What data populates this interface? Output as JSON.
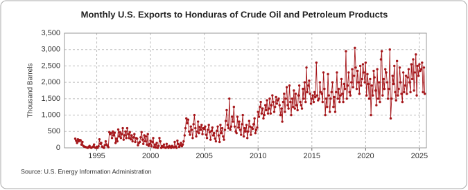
{
  "chart_data": {
    "type": "line",
    "title": "Monthly U.S. Exports to Honduras of Crude Oil and Petroleum Products",
    "y_label": "Thousand Barrels",
    "source": "Source: U.S. Energy Information Administration",
    "grid": true,
    "xlim": [
      1992,
      2025.65
    ],
    "xticks": [
      1995,
      2000,
      2005,
      2010,
      2015,
      2020,
      2025
    ],
    "ylim": [
      0,
      3500
    ],
    "yticks": [
      0,
      500,
      {
        "value": 1000,
        "label": "1,000"
      },
      {
        "value": 1500,
        "label": "1,500"
      },
      {
        "value": 2000,
        "label": "2,000"
      },
      {
        "value": 2500,
        "label": "2,500"
      },
      {
        "value": 3000,
        "label": "3,000"
      },
      {
        "value": 3500,
        "label": "3,500"
      }
    ],
    "x": [
      1993,
      1993.08,
      1993.17,
      1993.25,
      1993.33,
      1993.42,
      1993.5,
      1993.58,
      1993.67,
      1993.75,
      1993.83,
      1993.92,
      1994,
      1994.08,
      1994.17,
      1994.25,
      1994.33,
      1994.42,
      1994.5,
      1994.58,
      1994.67,
      1994.75,
      1994.83,
      1994.92,
      1995,
      1995.08,
      1995.17,
      1995.25,
      1995.33,
      1995.42,
      1995.5,
      1995.58,
      1995.67,
      1995.75,
      1995.83,
      1995.92,
      1996,
      1996.08,
      1996.17,
      1996.25,
      1996.33,
      1996.42,
      1996.5,
      1996.58,
      1996.67,
      1996.75,
      1996.83,
      1996.92,
      1997,
      1997.08,
      1997.17,
      1997.25,
      1997.33,
      1997.42,
      1997.5,
      1997.58,
      1997.67,
      1997.75,
      1997.83,
      1997.92,
      1998,
      1998.08,
      1998.17,
      1998.25,
      1998.33,
      1998.42,
      1998.5,
      1998.58,
      1998.67,
      1998.75,
      1998.83,
      1998.92,
      1999,
      1999.08,
      1999.17,
      1999.25,
      1999.33,
      1999.42,
      1999.5,
      1999.58,
      1999.67,
      1999.75,
      1999.83,
      1999.92,
      2000,
      2000.08,
      2000.17,
      2000.25,
      2000.33,
      2000.42,
      2000.5,
      2000.58,
      2000.67,
      2000.75,
      2000.83,
      2000.92,
      2001,
      2001.08,
      2001.17,
      2001.25,
      2001.33,
      2001.42,
      2001.5,
      2001.58,
      2001.67,
      2001.75,
      2001.83,
      2001.92,
      2002,
      2002.08,
      2002.17,
      2002.25,
      2002.33,
      2002.42,
      2002.5,
      2002.58,
      2002.67,
      2002.75,
      2002.83,
      2002.92,
      2003,
      2003.08,
      2003.17,
      2003.25,
      2003.33,
      2003.42,
      2003.5,
      2003.58,
      2003.67,
      2003.75,
      2003.83,
      2003.92,
      2004,
      2004.08,
      2004.17,
      2004.25,
      2004.33,
      2004.42,
      2004.5,
      2004.58,
      2004.67,
      2004.75,
      2004.83,
      2004.92,
      2005,
      2005.08,
      2005.17,
      2005.25,
      2005.33,
      2005.42,
      2005.5,
      2005.58,
      2005.67,
      2005.75,
      2005.83,
      2005.92,
      2006,
      2006.08,
      2006.17,
      2006.25,
      2006.33,
      2006.42,
      2006.5,
      2006.58,
      2006.67,
      2006.75,
      2006.83,
      2006.92,
      2007,
      2007.08,
      2007.17,
      2007.25,
      2007.33,
      2007.42,
      2007.5,
      2007.58,
      2007.67,
      2007.75,
      2007.83,
      2007.92,
      2008,
      2008.08,
      2008.17,
      2008.25,
      2008.33,
      2008.42,
      2008.5,
      2008.58,
      2008.67,
      2008.75,
      2008.83,
      2008.92,
      2009,
      2009.08,
      2009.17,
      2009.25,
      2009.33,
      2009.42,
      2009.5,
      2009.58,
      2009.67,
      2009.75,
      2009.83,
      2009.92,
      2010,
      2010.08,
      2010.17,
      2010.25,
      2010.33,
      2010.42,
      2010.5,
      2010.58,
      2010.67,
      2010.75,
      2010.83,
      2010.92,
      2011,
      2011.08,
      2011.17,
      2011.25,
      2011.33,
      2011.42,
      2011.5,
      2011.58,
      2011.67,
      2011.75,
      2011.83,
      2011.92,
      2012,
      2012.08,
      2012.17,
      2012.25,
      2012.33,
      2012.42,
      2012.5,
      2012.58,
      2012.67,
      2012.75,
      2012.83,
      2012.92,
      2013,
      2013.08,
      2013.17,
      2013.25,
      2013.33,
      2013.42,
      2013.5,
      2013.58,
      2013.67,
      2013.75,
      2013.83,
      2013.92,
      2014,
      2014.08,
      2014.17,
      2014.25,
      2014.33,
      2014.42,
      2014.5,
      2014.58,
      2014.67,
      2014.75,
      2014.83,
      2014.92,
      2015,
      2015.08,
      2015.17,
      2015.25,
      2015.33,
      2015.42,
      2015.5,
      2015.58,
      2015.67,
      2015.75,
      2015.83,
      2015.92,
      2016,
      2016.08,
      2016.17,
      2016.25,
      2016.33,
      2016.42,
      2016.5,
      2016.58,
      2016.67,
      2016.75,
      2016.83,
      2016.92,
      2017,
      2017.08,
      2017.17,
      2017.25,
      2017.33,
      2017.42,
      2017.5,
      2017.58,
      2017.67,
      2017.75,
      2017.83,
      2017.92,
      2018,
      2018.08,
      2018.17,
      2018.25,
      2018.33,
      2018.42,
      2018.5,
      2018.58,
      2018.67,
      2018.75,
      2018.83,
      2018.92,
      2019,
      2019.08,
      2019.17,
      2019.25,
      2019.33,
      2019.42,
      2019.5,
      2019.58,
      2019.67,
      2019.75,
      2019.83,
      2019.92,
      2020,
      2020.08,
      2020.17,
      2020.25,
      2020.33,
      2020.42,
      2020.5,
      2020.58,
      2020.67,
      2020.75,
      2020.83,
      2020.92,
      2021,
      2021.08,
      2021.17,
      2021.25,
      2021.33,
      2021.42,
      2021.5,
      2021.58,
      2021.67,
      2021.75,
      2021.83,
      2021.92,
      2022,
      2022.08,
      2022.17,
      2022.25,
      2022.33,
      2022.42,
      2022.5,
      2022.58,
      2022.67,
      2022.75,
      2022.83,
      2022.92,
      2023,
      2023.08,
      2023.17,
      2023.25,
      2023.33,
      2023.42,
      2023.5,
      2023.58,
      2023.67,
      2023.75,
      2023.83,
      2023.92,
      2024,
      2024.08,
      2024.17,
      2024.25,
      2024.33,
      2024.42,
      2024.5,
      2024.58,
      2024.67,
      2024.75,
      2024.83,
      2024.92,
      2025,
      2025.08,
      2025.17,
      2025.25,
      2025.33,
      2025.42,
      2025.5
    ],
    "series": [
      {
        "color": "#a5161a",
        "values": [
          280,
          220,
          150,
          260,
          200,
          240,
          230,
          100,
          180,
          60,
          40,
          30,
          20,
          10,
          0,
          30,
          60,
          10,
          0,
          20,
          40,
          100,
          10,
          0,
          30,
          0,
          50,
          260,
          120,
          150,
          40,
          20,
          0,
          80,
          200,
          100,
          60,
          20,
          480,
          420,
          450,
          300,
          500,
          380,
          460,
          150,
          280,
          200,
          560,
          350,
          480,
          300,
          420,
          600,
          250,
          380,
          500,
          300,
          600,
          420,
          300,
          480,
          260,
          380,
          200,
          320,
          420,
          180,
          300,
          280,
          80,
          150,
          180,
          320,
          480,
          250,
          120,
          380,
          200,
          350,
          100,
          420,
          60,
          120,
          220,
          50,
          180,
          300,
          20,
          100,
          10,
          150,
          0,
          60,
          300,
          200,
          0,
          50,
          20,
          100,
          10,
          0,
          120,
          30,
          0,
          60,
          20,
          0,
          60,
          20,
          10,
          180,
          40,
          0,
          220,
          120,
          30,
          80,
          150,
          50,
          100,
          200,
          380,
          600,
          900,
          750,
          860,
          500,
          400,
          650,
          550,
          300,
          720,
          1000,
          600,
          350,
          500,
          800,
          450,
          640,
          550,
          700,
          420,
          600,
          580,
          650,
          400,
          300,
          550,
          700,
          480,
          250,
          520,
          620,
          380,
          450,
          280,
          200,
          520,
          650,
          380,
          180,
          700,
          450,
          600,
          350,
          250,
          550,
          820,
          1150,
          700,
          600,
          1500,
          550,
          650,
          950,
          800,
          1250,
          650,
          500,
          450,
          950,
          620,
          800,
          550,
          400,
          720,
          1000,
          350,
          600,
          500,
          700,
          300,
          500,
          820,
          650,
          400,
          620,
          580,
          720,
          900,
          450,
          550,
          620,
          1100,
          950,
          1250,
          1400,
          1050,
          1200,
          900,
          1000,
          1300,
          1150,
          1450,
          1050,
          1200,
          1500,
          1050,
          1300,
          1600,
          1400,
          1100,
          1250,
          1550,
          1350,
          1450,
          1500,
          1300,
          1000,
          1200,
          800,
          1400,
          1650,
          1100,
          1500,
          1850,
          1300,
          1200,
          1900,
          1400,
          1000,
          1500,
          1250,
          1750,
          1200,
          1650,
          1300,
          1150,
          1600,
          1900,
          1400,
          1300,
          1200,
          1800,
          1500,
          2000,
          1400,
          2450,
          1700,
          1900,
          2050,
          1650,
          1350,
          1500,
          1600,
          1400,
          1700,
          1550,
          2600,
          1600,
          1450,
          1500,
          2000,
          1700,
          1650,
          1400,
          2300,
          1800,
          1000,
          1500,
          1250,
          2250,
          1600,
          1100,
          1500,
          1700,
          2000,
          1250,
          1550,
          1100,
          1700,
          2300,
          1500,
          1800,
          1400,
          1600,
          2100,
          1650,
          1400,
          1950,
          1800,
          2950,
          1500,
          1900,
          2300,
          1700,
          1600,
          2000,
          2400,
          1850,
          2200,
          3050,
          2450,
          1800,
          2350,
          2000,
          1650,
          2500,
          1900,
          2100,
          2550,
          2300,
          2000,
          2600,
          1600,
          2250,
          1950,
          1500,
          2100,
          1000,
          1900,
          1600,
          2350,
          2150,
          1750,
          1300,
          2400,
          1500,
          2000,
          1400,
          2700,
          2950,
          1600,
          2100,
          1800,
          2400,
          2300,
          2000,
          1500,
          1800,
          3000,
          900,
          1500,
          2200,
          1950,
          2500,
          1700,
          1450,
          2650,
          1600,
          1800,
          2450,
          2000,
          1650,
          1400,
          2300,
          1700,
          1900,
          2200,
          1650,
          2150,
          2400,
          2000,
          1700,
          2550,
          2100,
          2700,
          1750,
          2300,
          2850,
          1600,
          2500,
          2200,
          2550,
          2350,
          2400,
          2600,
          1700,
          2450,
          1650
        ]
      }
    ]
  }
}
